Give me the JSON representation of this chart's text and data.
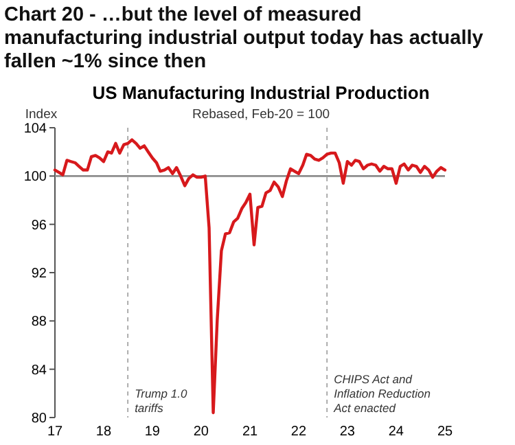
{
  "chart_data": {
    "type": "line",
    "title": "US Manufacturing Industrial Production",
    "subtitle": "Rebased, Feb-20 = 100",
    "ylabel": "Index",
    "annotations": [
      "Chart 20 - …but the level of measured\nmanufacturing industrial output today has actually\nfallen ~1% since then"
    ],
    "x": [
      "2017-01",
      "2017-02",
      "2017-03",
      "2017-04",
      "2017-05",
      "2017-06",
      "2017-07",
      "2017-08",
      "2017-09",
      "2017-10",
      "2017-11",
      "2017-12",
      "2018-01",
      "2018-02",
      "2018-03",
      "2018-04",
      "2018-05",
      "2018-06",
      "2018-07",
      "2018-08",
      "2018-09",
      "2018-10",
      "2018-11",
      "2018-12",
      "2019-01",
      "2019-02",
      "2019-03",
      "2019-04",
      "2019-05",
      "2019-06",
      "2019-07",
      "2019-08",
      "2019-09",
      "2019-10",
      "2019-11",
      "2019-12",
      "2020-01",
      "2020-02",
      "2020-03",
      "2020-04",
      "2020-05",
      "2020-06",
      "2020-07",
      "2020-08",
      "2020-09",
      "2020-10",
      "2020-11",
      "2020-12",
      "2021-01",
      "2021-02",
      "2021-03",
      "2021-04",
      "2021-05",
      "2021-06",
      "2021-07",
      "2021-08",
      "2021-09",
      "2021-10",
      "2021-11",
      "2021-12",
      "2022-01",
      "2022-02",
      "2022-03",
      "2022-04",
      "2022-05",
      "2022-06",
      "2022-07",
      "2022-08",
      "2022-09",
      "2022-10",
      "2022-11",
      "2022-12",
      "2023-01",
      "2023-02",
      "2023-03",
      "2023-04",
      "2023-05",
      "2023-06",
      "2023-07",
      "2023-08",
      "2023-09",
      "2023-10",
      "2023-11",
      "2023-12",
      "2024-01",
      "2024-02",
      "2024-03",
      "2024-04",
      "2024-05",
      "2024-06",
      "2024-07",
      "2024-08",
      "2024-09",
      "2024-10",
      "2024-11",
      "2024-12",
      "2025-01"
    ],
    "series": [
      {
        "color": "#d7191c",
        "values": [
          100.5,
          100.3,
          100.1,
          101.3,
          101.2,
          101.1,
          100.8,
          100.5,
          100.5,
          101.6,
          101.7,
          101.5,
          101.2,
          102.0,
          101.9,
          102.7,
          101.9,
          102.6,
          102.7,
          103.0,
          102.7,
          102.3,
          102.5,
          102.0,
          101.5,
          101.1,
          100.4,
          100.5,
          100.7,
          100.2,
          100.7,
          100.0,
          99.2,
          99.8,
          100.1,
          99.9,
          99.9,
          100.0,
          95.7,
          80.4,
          88.1,
          93.8,
          95.2,
          95.3,
          96.2,
          96.5,
          97.3,
          97.8,
          98.5,
          94.3,
          97.4,
          97.5,
          98.6,
          98.8,
          99.5,
          99.1,
          98.3,
          99.6,
          100.6,
          100.4,
          100.2,
          100.9,
          101.8,
          101.7,
          101.4,
          101.3,
          101.5,
          101.8,
          101.9,
          101.9,
          101.1,
          99.4,
          101.2,
          100.9,
          101.3,
          101.2,
          100.6,
          100.9,
          101.0,
          100.9,
          100.4,
          100.8,
          100.6,
          100.6,
          99.4,
          100.8,
          101.0,
          100.5,
          100.9,
          100.8,
          100.3,
          100.8,
          100.5,
          99.9,
          100.4,
          100.7,
          100.5
        ]
      }
    ],
    "xlim": [
      "2017-01",
      "2025-01"
    ],
    "xticks": [
      {
        "value": "2017-01",
        "label": "17"
      },
      {
        "value": "2018-01",
        "label": "18"
      },
      {
        "value": "2019-01",
        "label": "19"
      },
      {
        "value": "2020-01",
        "label": "20"
      },
      {
        "value": "2021-01",
        "label": "21"
      },
      {
        "value": "2022-01",
        "label": "22"
      },
      {
        "value": "2023-01",
        "label": "23"
      },
      {
        "value": "2024-01",
        "label": "24"
      },
      {
        "value": "2025-01",
        "label": "25"
      }
    ],
    "ylim": [
      80,
      104
    ],
    "yticks": [
      80,
      84,
      88,
      92,
      96,
      100,
      104
    ],
    "ref_lines": [
      {
        "axis": "y",
        "value": 100,
        "color": "#8c8c8c",
        "line_style": "solid"
      },
      {
        "axis": "x",
        "value": "2018-07",
        "label": "Trump 1.0\ntariffs",
        "color": "#8c8c8c",
        "line_style": "dashed"
      },
      {
        "axis": "x",
        "value": "2022-08",
        "label": "CHIPS Act and\nInflation Reduction\nAct enacted",
        "color": "#8c8c8c",
        "line_style": "dashed"
      }
    ],
    "grid": false,
    "marker": "none",
    "line_style": "solid"
  }
}
